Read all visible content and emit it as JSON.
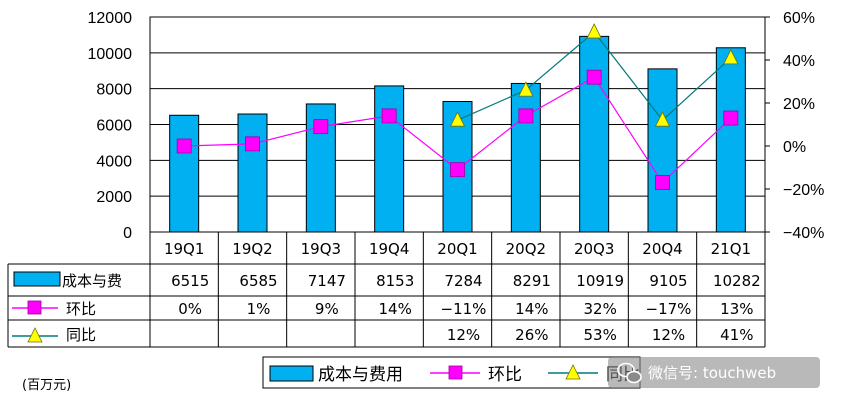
{
  "chart_data": {
    "type": "bar",
    "categories": [
      "19Q1",
      "19Q2",
      "19Q3",
      "19Q4",
      "20Q1",
      "20Q2",
      "20Q3",
      "20Q4",
      "21Q1"
    ],
    "series": [
      {
        "name": "成本与费用",
        "type": "bar",
        "axis": "left",
        "color": "#00b0f0",
        "values": [
          6515,
          6585,
          7147,
          8153,
          7284,
          8291,
          10919,
          9105,
          10282
        ]
      },
      {
        "name": "环比",
        "type": "line",
        "axis": "right",
        "color": "#ff00ff",
        "values": [
          0,
          1,
          9,
          14,
          -11,
          14,
          32,
          -17,
          13
        ]
      },
      {
        "name": "同比",
        "type": "line",
        "axis": "right",
        "color": "#007b7b",
        "values": [
          null,
          null,
          null,
          null,
          12,
          26,
          53,
          12,
          41
        ]
      }
    ],
    "left_axis": {
      "ylim": [
        0,
        12000
      ],
      "ticks": [
        "0",
        "2000",
        "4000",
        "6000",
        "8000",
        "10000",
        "12000"
      ]
    },
    "right_axis": {
      "ylim": [
        -40,
        60
      ],
      "ticks": [
        "-40%",
        "-20%",
        "0%",
        "20%",
        "40%",
        "60%"
      ]
    },
    "table": {
      "row_labels": [
        "成本与费",
        "环比",
        "同比"
      ],
      "rows": [
        [
          "6515",
          "6585",
          "7147",
          "8153",
          "7284",
          "8291",
          "10919",
          "9105",
          "10282"
        ],
        [
          "0%",
          "1%",
          "9%",
          "14%",
          "−11%",
          "14%",
          "32%",
          "−17%",
          "13%"
        ],
        [
          "",
          "",
          "",
          "",
          "12%",
          "26%",
          "53%",
          "12%",
          "41%"
        ]
      ]
    },
    "legend": {
      "position": "bottom",
      "labels": [
        "成本与费用",
        "环比",
        "同比"
      ]
    },
    "unit_label": "(百万元)"
  },
  "watermark": "微信号: touchweb"
}
